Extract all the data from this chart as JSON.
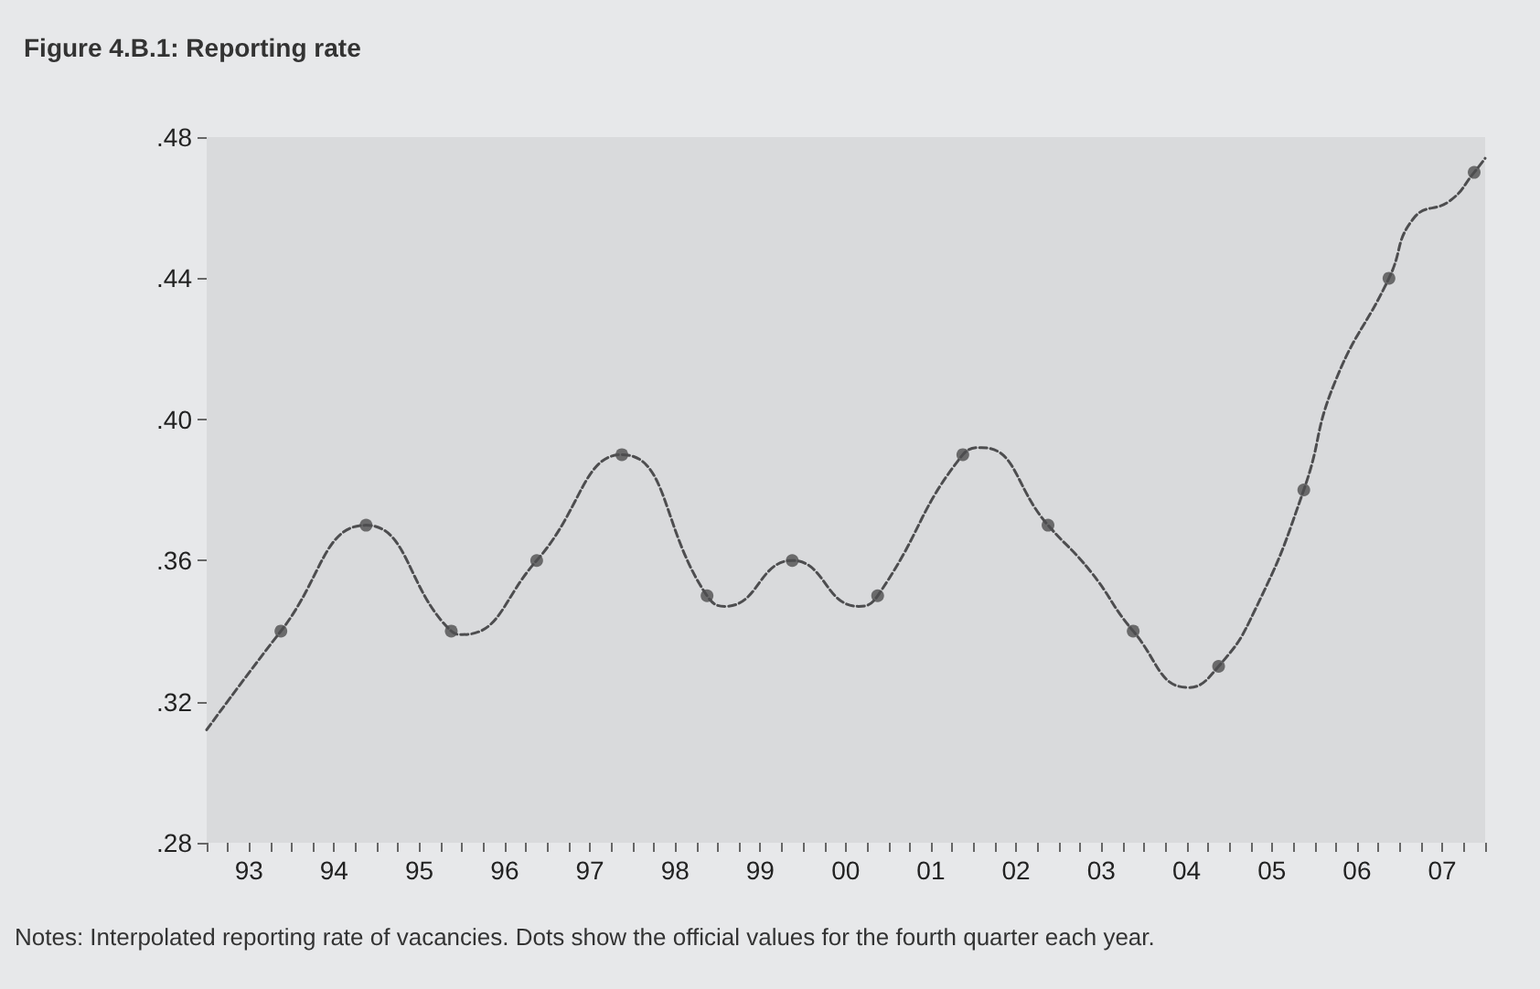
{
  "chart_data": {
    "type": "line",
    "title": "Figure 4.B.1: Reporting rate",
    "annotations": [
      "Notes: Interpolated reporting rate of vacancies. Dots show the official values for the fourth quarter each year."
    ],
    "series": [
      {
        "color": "#4d4d4f",
        "line_style": "dashed",
        "marker": "none",
        "x": [
          "1993",
          "1993-11-15",
          "1994-11-15",
          "1995-11-15",
          "1996",
          "1996-11-15",
          "1997-11-15",
          "1998-11-15",
          "1999-02",
          "1999-11-15",
          "2000-08-25",
          "2000-11-15",
          "2001-11-15",
          "2002-02-03",
          "2002-11-15",
          "2003-05-15",
          "2003-11-15",
          "2004-07-08",
          "2004-11-15",
          "2005-04-20",
          "2005-11-15",
          "2006-03-25",
          "2006-11-15",
          "2007-03-01",
          "2007-08-04",
          "2007-11-15",
          "2008"
        ],
        "values": [
          0.312,
          0.34,
          0.37,
          0.34,
          0.339,
          0.36,
          0.39,
          0.35,
          0.347,
          0.36,
          0.347,
          0.35,
          0.39,
          0.392,
          0.37,
          0.357,
          0.34,
          0.324,
          0.33,
          0.346,
          0.38,
          0.41,
          0.44,
          0.457,
          0.462,
          0.47,
          0.474
        ]
      },
      {
        "type": "scatter",
        "color": "#4d4d4f",
        "marker": "circle",
        "x": [
          "1993-11-15",
          "1994-11-15",
          "1995-11-15",
          "1996-11-15",
          "1997-11-15",
          "1998-11-15",
          "1999-11-15",
          "2000-11-15",
          "2001-11-15",
          "2002-11-15",
          "2003-11-15",
          "2004-11-15",
          "2005-11-15",
          "2006-11-15",
          "2007-11-15"
        ],
        "values": [
          0.34,
          0.37,
          0.34,
          0.36,
          0.39,
          0.35,
          0.36,
          0.35,
          0.39,
          0.37,
          0.34,
          0.33,
          0.38,
          0.44,
          0.47
        ]
      }
    ],
    "xlim": [
      "1993",
      "2008"
    ],
    "xticks": [
      {
        "value": "1993",
        "label": null
      },
      {
        "value": "1993-04",
        "label": null
      },
      {
        "value": "1993-07",
        "label": "93"
      },
      {
        "value": "1993-10",
        "label": null
      },
      {
        "value": "1994",
        "label": null
      },
      {
        "value": "1994-04",
        "label": null
      },
      {
        "value": "1994-07",
        "label": "94"
      },
      {
        "value": "1994-10",
        "label": null
      },
      {
        "value": "1995",
        "label": null
      },
      {
        "value": "1995-04",
        "label": null
      },
      {
        "value": "1995-07",
        "label": "95"
      },
      {
        "value": "1995-10",
        "label": null
      },
      {
        "value": "1996",
        "label": null
      },
      {
        "value": "1996-04",
        "label": null
      },
      {
        "value": "1996-07",
        "label": "96"
      },
      {
        "value": "1996-10",
        "label": null
      },
      {
        "value": "1997",
        "label": null
      },
      {
        "value": "1997-04",
        "label": null
      },
      {
        "value": "1997-07",
        "label": "97"
      },
      {
        "value": "1997-10",
        "label": null
      },
      {
        "value": "1998",
        "label": null
      },
      {
        "value": "1998-04",
        "label": null
      },
      {
        "value": "1998-07",
        "label": "98"
      },
      {
        "value": "1998-10",
        "label": null
      },
      {
        "value": "1999",
        "label": null
      },
      {
        "value": "1999-04",
        "label": null
      },
      {
        "value": "1999-07",
        "label": "99"
      },
      {
        "value": "1999-10",
        "label": null
      },
      {
        "value": "2000",
        "label": null
      },
      {
        "value": "2000-04",
        "label": null
      },
      {
        "value": "2000-07",
        "label": "00"
      },
      {
        "value": "2000-10",
        "label": null
      },
      {
        "value": "2001",
        "label": null
      },
      {
        "value": "2001-04",
        "label": null
      },
      {
        "value": "2001-07",
        "label": "01"
      },
      {
        "value": "2001-10",
        "label": null
      },
      {
        "value": "2002",
        "label": null
      },
      {
        "value": "2002-04",
        "label": null
      },
      {
        "value": "2002-07",
        "label": "02"
      },
      {
        "value": "2002-10",
        "label": null
      },
      {
        "value": "2003",
        "label": null
      },
      {
        "value": "2003-04",
        "label": null
      },
      {
        "value": "2003-07",
        "label": "03"
      },
      {
        "value": "2003-10",
        "label": null
      },
      {
        "value": "2004",
        "label": null
      },
      {
        "value": "2004-04",
        "label": null
      },
      {
        "value": "2004-07",
        "label": "04"
      },
      {
        "value": "2004-10",
        "label": null
      },
      {
        "value": "2005",
        "label": null
      },
      {
        "value": "2005-04",
        "label": null
      },
      {
        "value": "2005-07",
        "label": "05"
      },
      {
        "value": "2005-10",
        "label": null
      },
      {
        "value": "2006",
        "label": null
      },
      {
        "value": "2006-04",
        "label": null
      },
      {
        "value": "2006-07",
        "label": "06"
      },
      {
        "value": "2006-10",
        "label": null
      },
      {
        "value": "2007",
        "label": null
      },
      {
        "value": "2007-04",
        "label": null
      },
      {
        "value": "2007-07",
        "label": "07"
      },
      {
        "value": "2007-10",
        "label": null
      },
      {
        "value": "2008",
        "label": null
      }
    ],
    "ylim": [
      0.28,
      0.48
    ],
    "yticks": [
      {
        "value": 0.28,
        "label": ".28"
      },
      {
        "value": 0.32,
        "label": ".32"
      },
      {
        "value": 0.36,
        "label": ".36"
      },
      {
        "value": 0.4,
        "label": ".40"
      },
      {
        "value": 0.44,
        "label": ".44"
      },
      {
        "value": 0.48,
        "label": ".48"
      }
    ]
  }
}
